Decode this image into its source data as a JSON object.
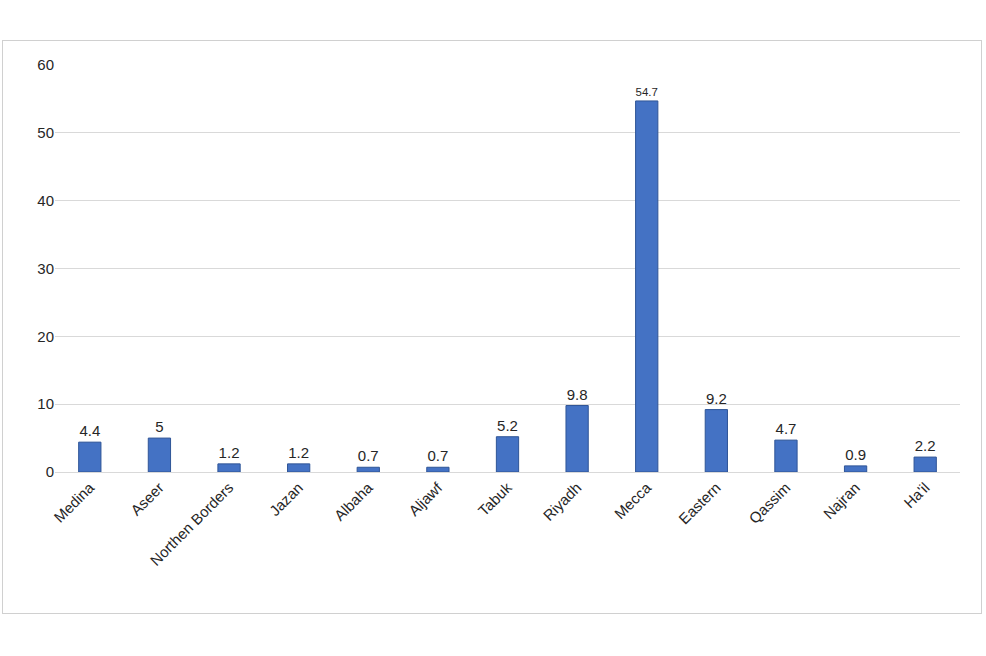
{
  "chart_data": {
    "type": "bar",
    "categories": [
      "Medina",
      "Aseer",
      "Northen Borders",
      "Jazan",
      "Albaha",
      "Aljawf",
      "Tabuk",
      "Riyadh",
      "Mecca",
      "Eastern",
      "Qassim",
      "Najran",
      "Ha'il"
    ],
    "values": [
      4.4,
      5,
      1.2,
      1.2,
      0.7,
      0.7,
      5.2,
      9.8,
      54.7,
      9.2,
      4.7,
      0.9,
      2.2
    ],
    "color": "#4472c4",
    "ylim": [
      0,
      60
    ],
    "yticks": [
      0,
      10,
      20,
      30,
      40,
      50,
      60
    ],
    "grid": true,
    "data_labels": true
  }
}
